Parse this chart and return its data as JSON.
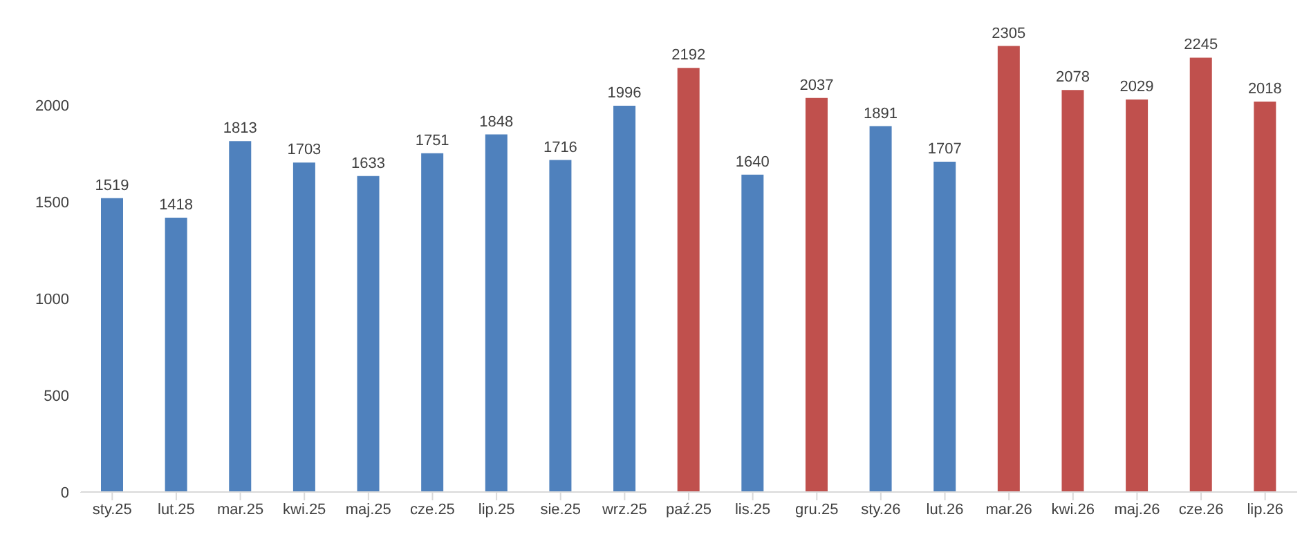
{
  "chart_data": {
    "type": "bar",
    "categories": [
      "sty.25",
      "lut.25",
      "mar.25",
      "kwi.25",
      "maj.25",
      "cze.25",
      "lip.25",
      "sie.25",
      "wrz.25",
      "paź.25",
      "lis.25",
      "gru.25",
      "sty.26",
      "lut.26",
      "mar.26",
      "kwi.26",
      "maj.26",
      "cze.26",
      "lip.26"
    ],
    "values": [
      1519,
      1418,
      1813,
      1703,
      1633,
      1751,
      1848,
      1716,
      1996,
      2192,
      1640,
      2037,
      1891,
      1707,
      2305,
      2078,
      2029,
      2245,
      2018
    ],
    "colors": [
      "#4f81bd",
      "#4f81bd",
      "#4f81bd",
      "#4f81bd",
      "#4f81bd",
      "#4f81bd",
      "#4f81bd",
      "#4f81bd",
      "#4f81bd",
      "#c0504d",
      "#4f81bd",
      "#c0504d",
      "#4f81bd",
      "#4f81bd",
      "#c0504d",
      "#c0504d",
      "#c0504d",
      "#c0504d",
      "#c0504d"
    ],
    "ylim": [
      0,
      2400
    ],
    "yticks": [
      0,
      500,
      1000,
      1500,
      2000
    ],
    "data_labels": true,
    "grid": false,
    "legend": false
  }
}
